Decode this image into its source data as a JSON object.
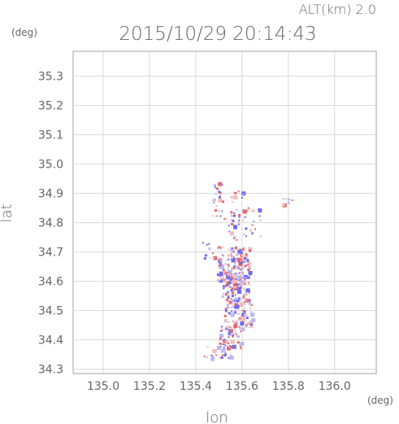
{
  "chart_data": {
    "type": "scatter",
    "title": "2015/10/29 20:14:43",
    "subtitle": "ALT(km) 2.0",
    "xlabel": "lon",
    "ylabel": "lat",
    "xunit": "(deg)",
    "yunit": "(deg)",
    "xlim": [
      134.87,
      136.18
    ],
    "ylim": [
      34.285,
      35.385
    ],
    "x_ticks": [
      "135.0",
      "135.2",
      "135.4",
      "135.6",
      "135.8",
      "136.0"
    ],
    "y_ticks": [
      "34.3",
      "34.4",
      "34.5",
      "34.6",
      "34.7",
      "34.8",
      "34.9",
      "35.0",
      "35.1",
      "35.2",
      "35.3"
    ],
    "grid": true,
    "colors": {
      "positive": "#e46a6a",
      "negative": "#6b6bf0",
      "weak_positive": "#f2bcbc",
      "weak_negative": "#b8b8f4"
    },
    "clusters": [
      {
        "lon": 135.5,
        "lat": 34.88,
        "lon_spread": 0.03,
        "lat_spread": 0.07,
        "count": 25
      },
      {
        "lon": 135.58,
        "lat": 34.89,
        "lon_spread": 0.03,
        "lat_spread": 0.02,
        "count": 10
      },
      {
        "lon": 135.61,
        "lat": 34.8,
        "lon_spread": 0.07,
        "lat_spread": 0.06,
        "count": 50
      },
      {
        "lon": 135.8,
        "lat": 34.875,
        "lon_spread": 0.03,
        "lat_spread": 0.01,
        "count": 8
      },
      {
        "lon": 135.56,
        "lat": 34.66,
        "lon_spread": 0.07,
        "lat_spread": 0.06,
        "count": 170
      },
      {
        "lon": 135.57,
        "lat": 34.58,
        "lon_spread": 0.06,
        "lat_spread": 0.05,
        "count": 110
      },
      {
        "lon": 135.58,
        "lat": 34.49,
        "lon_spread": 0.06,
        "lat_spread": 0.05,
        "count": 100
      },
      {
        "lon": 135.55,
        "lat": 34.41,
        "lon_spread": 0.05,
        "lat_spread": 0.04,
        "count": 55
      },
      {
        "lon": 135.49,
        "lat": 34.36,
        "lon_spread": 0.06,
        "lat_spread": 0.02,
        "count": 30
      },
      {
        "lon": 135.45,
        "lat": 34.71,
        "lon_spread": 0.03,
        "lat_spread": 0.03,
        "count": 10
      }
    ]
  }
}
